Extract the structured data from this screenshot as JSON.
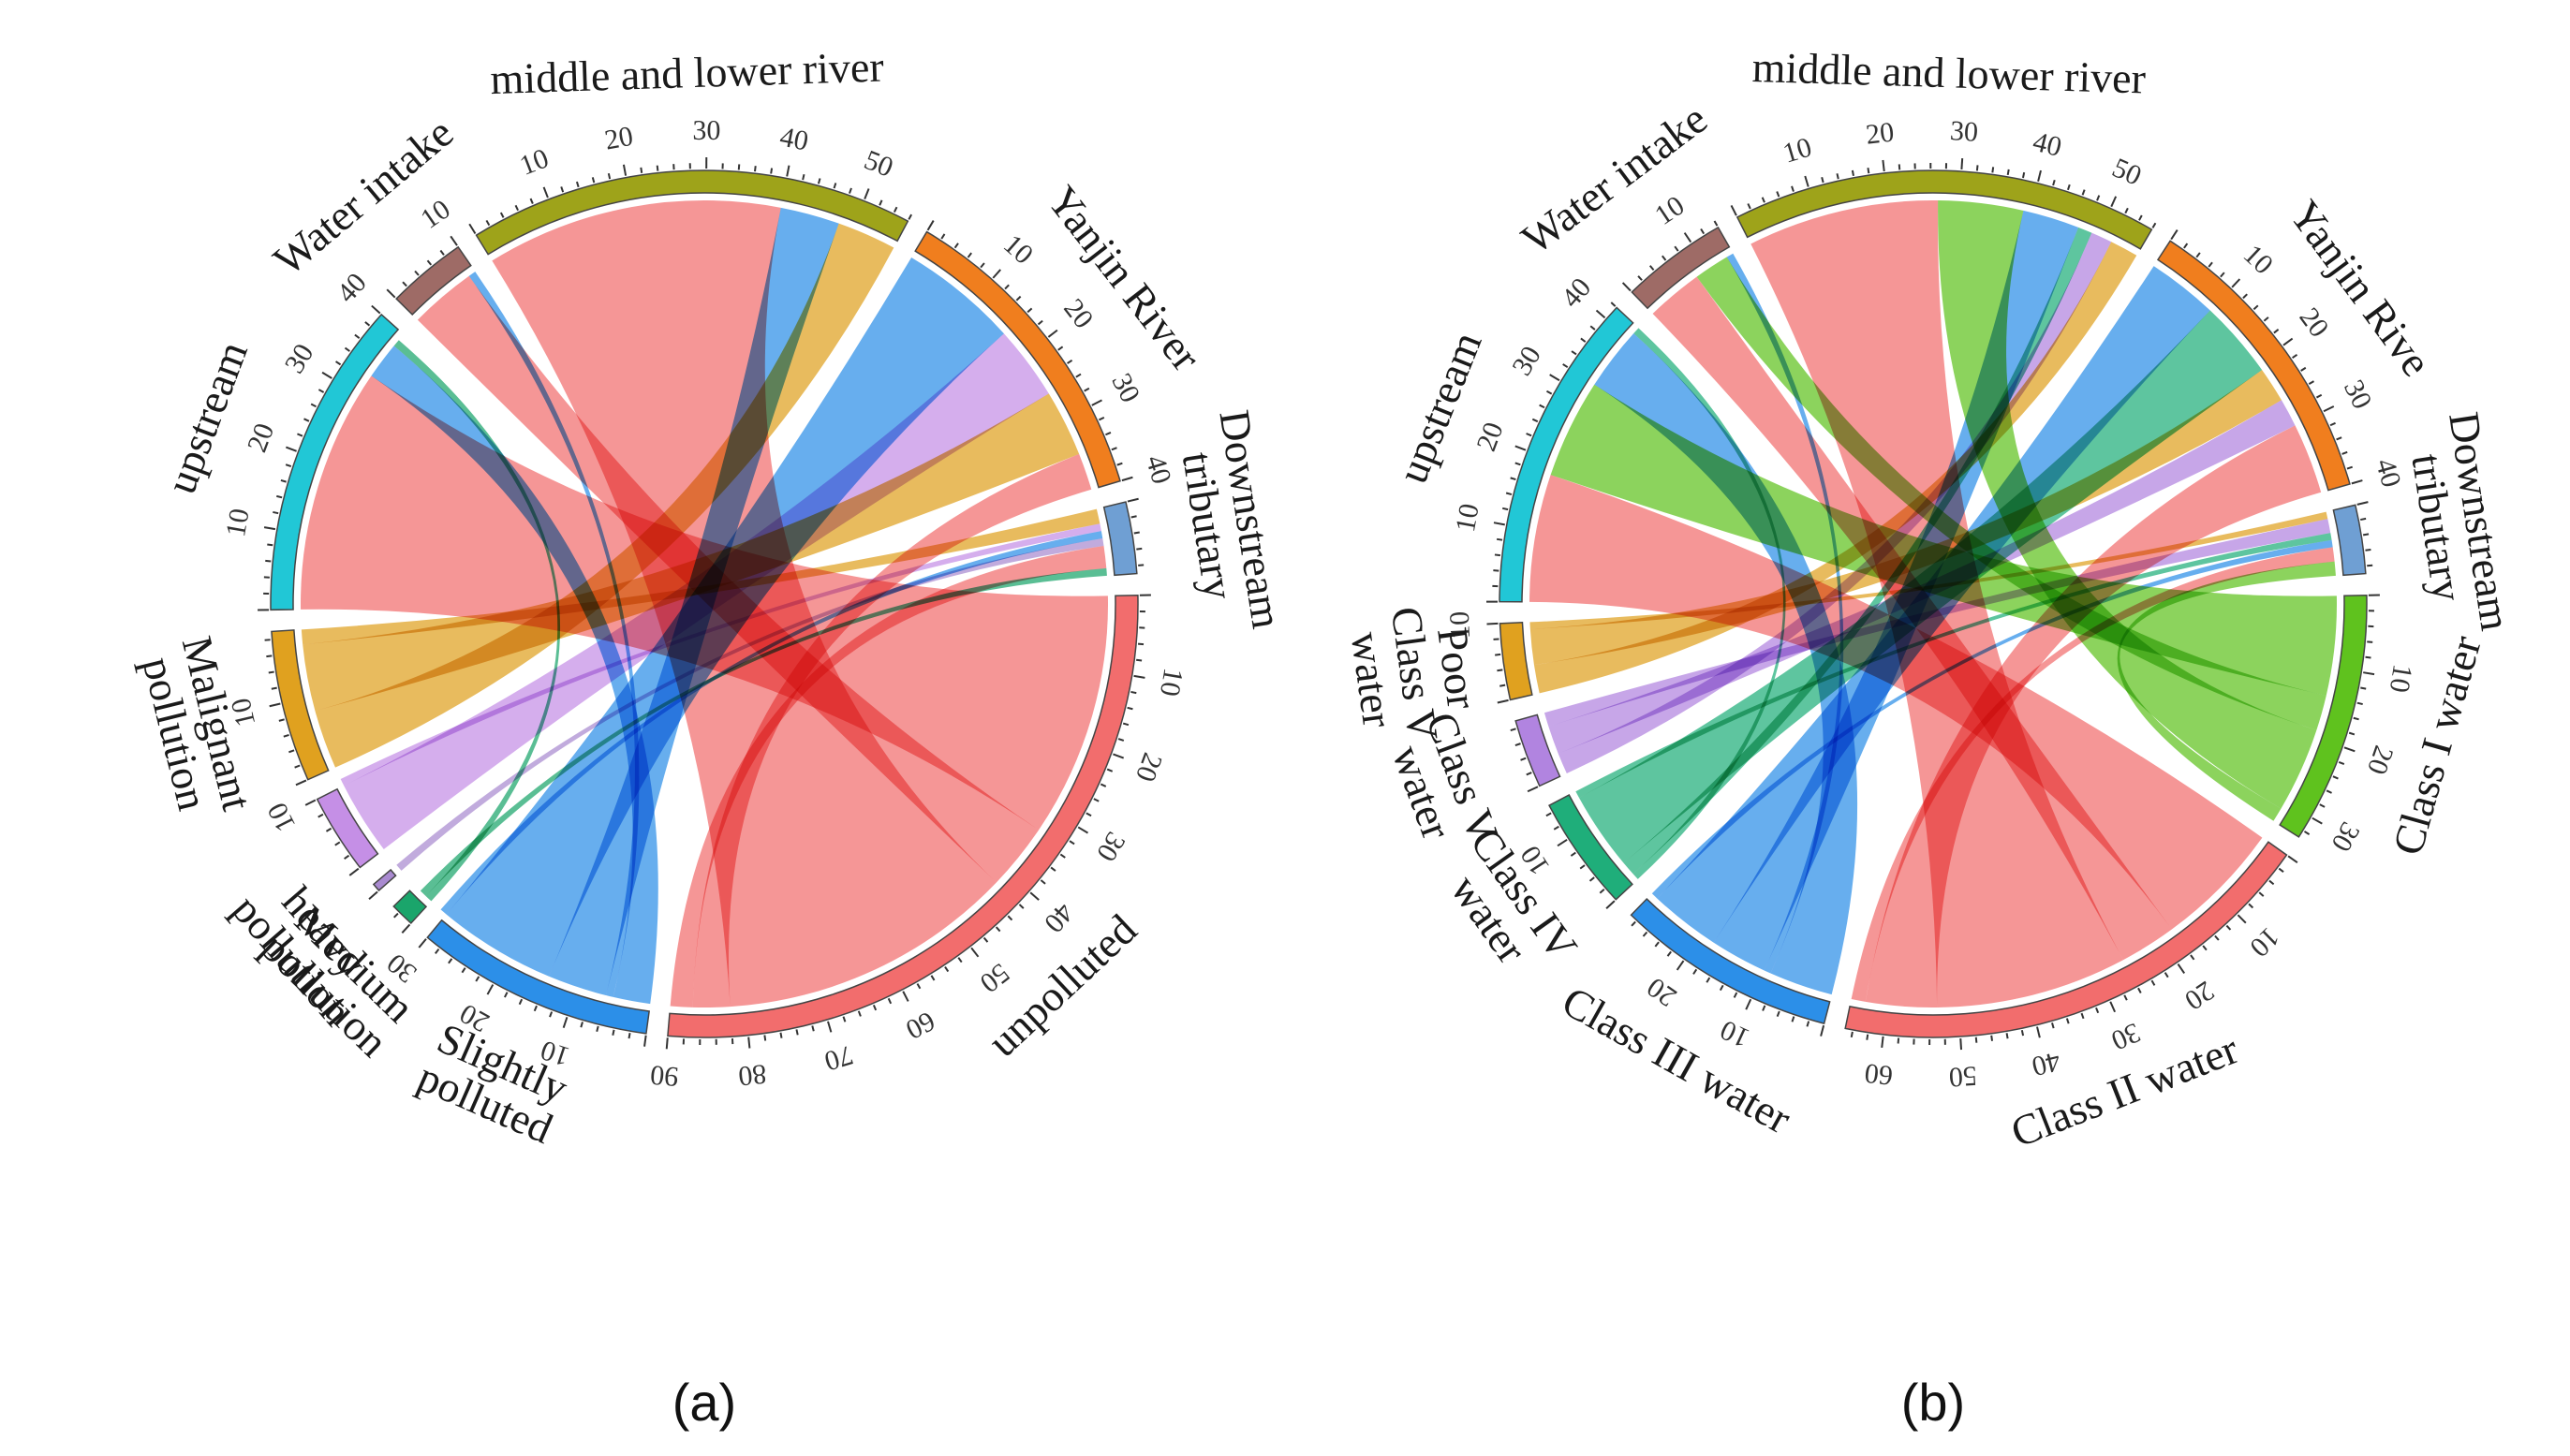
{
  "panels": {
    "a": {
      "label": "(a)"
    },
    "b": {
      "label": "(b)"
    }
  },
  "chart_data": [
    {
      "type": "chord",
      "panel": "(a)",
      "title": "",
      "segments": [
        {
          "name": "unpolluted",
          "label_lines": [
            "unpolluted"
          ],
          "value": 90,
          "color": "#f26d6d",
          "group": "status"
        },
        {
          "name": "Slightly polluted",
          "label_lines": [
            "Slightly",
            "polluted"
          ],
          "value": 30,
          "color": "#2c8fe8",
          "group": "status"
        },
        {
          "name": "Medium pollution",
          "label_lines": [
            "Medium",
            "pollution"
          ],
          "value": 3,
          "color": "#1aa56b",
          "group": "status"
        },
        {
          "name": "heavy pollution",
          "label_lines": [
            "heavy",
            "pollution"
          ],
          "value": 1,
          "color": "#a98ad0",
          "group": "status"
        },
        {
          "name": "heavy pollution (light)",
          "label_lines": [],
          "value": 10,
          "color": "#c58fe6",
          "group": "status"
        },
        {
          "name": "Malignant pollution",
          "label_lines": [
            "Malignant",
            "pollution"
          ],
          "value": 19,
          "color": "#e0a11f",
          "group": "status"
        },
        {
          "name": "upstream",
          "label_lines": [
            "upstream"
          ],
          "value": 40,
          "color": "#21c7d6",
          "group": "site"
        },
        {
          "name": "Water intake",
          "label_lines": [
            "Water intake"
          ],
          "value": 10,
          "color": "#9e6b66",
          "group": "site"
        },
        {
          "name": "middle and lower river",
          "label_lines": [
            "middle and lower river"
          ],
          "value": 56,
          "color": "#9ea31a",
          "group": "site"
        },
        {
          "name": "Yanjin River",
          "label_lines": [
            "Yanjin River"
          ],
          "value": 40,
          "color": "#f07e1e",
          "group": "site"
        },
        {
          "name": "Downstream tributary",
          "label_lines": [
            "Downstream",
            "tributary"
          ],
          "value": 9,
          "color": "#6f9fd3",
          "group": "site"
        }
      ],
      "flows": [
        {
          "from": "upstream",
          "to": "unpolluted",
          "value": 33
        },
        {
          "from": "upstream",
          "to": "Slightly polluted",
          "value": 5
        },
        {
          "from": "upstream",
          "to": "Medium pollution",
          "value": 1
        },
        {
          "from": "Water intake",
          "to": "unpolluted",
          "value": 9
        },
        {
          "from": "Water intake",
          "to": "Slightly polluted",
          "value": 1
        },
        {
          "from": "middle and lower river",
          "to": "unpolluted",
          "value": 40
        },
        {
          "from": "middle and lower river",
          "to": "Slightly polluted",
          "value": 8
        },
        {
          "from": "middle and lower river",
          "to": "Malignant pollution",
          "value": 8
        },
        {
          "from": "Yanjin River",
          "to": "Slightly polluted",
          "value": 16
        },
        {
          "from": "Yanjin River",
          "to": "heavy pollution (light)",
          "value": 10
        },
        {
          "from": "Yanjin River",
          "to": "Malignant pollution",
          "value": 9
        },
        {
          "from": "Yanjin River",
          "to": "unpolluted",
          "value": 5
        },
        {
          "from": "Downstream tributary",
          "to": "Malignant pollution",
          "value": 2
        },
        {
          "from": "Downstream tributary",
          "to": "heavy pollution (light)",
          "value": 1
        },
        {
          "from": "Downstream tributary",
          "to": "Slightly polluted",
          "value": 1
        },
        {
          "from": "Downstream tributary",
          "to": "heavy pollution",
          "value": 1
        },
        {
          "from": "Downstream tributary",
          "to": "unpolluted",
          "value": 3
        },
        {
          "from": "Downstream tributary",
          "to": "Medium pollution",
          "value": 1
        }
      ]
    },
    {
      "type": "chord",
      "panel": "(b)",
      "title": "",
      "segments": [
        {
          "name": "Class I water",
          "label_lines": [
            "Class I water"
          ],
          "value": 33,
          "color": "#5fc21e",
          "group": "class"
        },
        {
          "name": "Class II water",
          "label_lines": [
            "Class II water"
          ],
          "value": 65,
          "color": "#f26d6d",
          "group": "class"
        },
        {
          "name": "Class III water",
          "label_lines": [
            "Class III water"
          ],
          "value": 29,
          "color": "#2c8fe8",
          "group": "class"
        },
        {
          "name": "Class IV water",
          "label_lines": [
            "Class IV",
            "water"
          ],
          "value": 15,
          "color": "#1fae7a",
          "group": "class"
        },
        {
          "name": "Class V water",
          "label_lines": [
            "Class V",
            "water"
          ],
          "value": 9,
          "color": "#b184e0",
          "group": "class"
        },
        {
          "name": "Poor Class V water",
          "label_lines": [
            "Poor",
            "Class V",
            "water"
          ],
          "value": 10,
          "color": "#e0a11f",
          "group": "class"
        },
        {
          "name": "upstream",
          "label_lines": [
            "upstream"
          ],
          "value": 42,
          "color": "#21c7d6",
          "group": "site"
        },
        {
          "name": "Water intake",
          "label_lines": [
            "Water intake"
          ],
          "value": 14,
          "color": "#9e6b66",
          "group": "site"
        },
        {
          "name": "middle and lower river",
          "label_lines": [
            "middle and lower river"
          ],
          "value": 56,
          "color": "#9ea31a",
          "group": "site"
        },
        {
          "name": "Yanjin River",
          "label_lines": [
            "Yanjin Rive"
          ],
          "value": 40,
          "color": "#f07e1e",
          "group": "site"
        },
        {
          "name": "Downstream tributary",
          "label_lines": [
            "Downstream",
            "tributary"
          ],
          "value": 9,
          "color": "#6f9fd3",
          "group": "site"
        }
      ],
      "flows": [
        {
          "from": "upstream",
          "to": "Class II water",
          "value": 18
        },
        {
          "from": "upstream",
          "to": "Class I water",
          "value": 14
        },
        {
          "from": "upstream",
          "to": "Class III water",
          "value": 9
        },
        {
          "from": "upstream",
          "to": "Class IV water",
          "value": 1
        },
        {
          "from": "Water intake",
          "to": "Class II water",
          "value": 8
        },
        {
          "from": "Water intake",
          "to": "Class I water",
          "value": 5
        },
        {
          "from": "Water intake",
          "to": "Class III water",
          "value": 1
        },
        {
          "from": "middle and lower river",
          "to": "Class II water",
          "value": 27
        },
        {
          "from": "middle and lower river",
          "to": "Class I water",
          "value": 12
        },
        {
          "from": "middle and lower river",
          "to": "Class III water",
          "value": 8
        },
        {
          "from": "middle and lower river",
          "to": "Class IV water",
          "value": 2
        },
        {
          "from": "middle and lower river",
          "to": "Class V water",
          "value": 3
        },
        {
          "from": "middle and lower river",
          "to": "Poor Class V water",
          "value": 4
        },
        {
          "from": "Yanjin River",
          "to": "Class III water",
          "value": 10
        },
        {
          "from": "Yanjin River",
          "to": "Class IV water",
          "value": 11
        },
        {
          "from": "Yanjin River",
          "to": "Poor Class V water",
          "value": 5
        },
        {
          "from": "Yanjin River",
          "to": "Class V water",
          "value": 4
        },
        {
          "from": "Yanjin River",
          "to": "Class II water",
          "value": 10
        },
        {
          "from": "Downstream tributary",
          "to": "Poor Class V water",
          "value": 1
        },
        {
          "from": "Downstream tributary",
          "to": "Class V water",
          "value": 2
        },
        {
          "from": "Downstream tributary",
          "to": "Class IV water",
          "value": 1
        },
        {
          "from": "Downstream tributary",
          "to": "Class III water",
          "value": 1
        },
        {
          "from": "Downstream tributary",
          "to": "Class II water",
          "value": 2
        },
        {
          "from": "Downstream tributary",
          "to": "Class I water",
          "value": 2
        }
      ]
    }
  ]
}
